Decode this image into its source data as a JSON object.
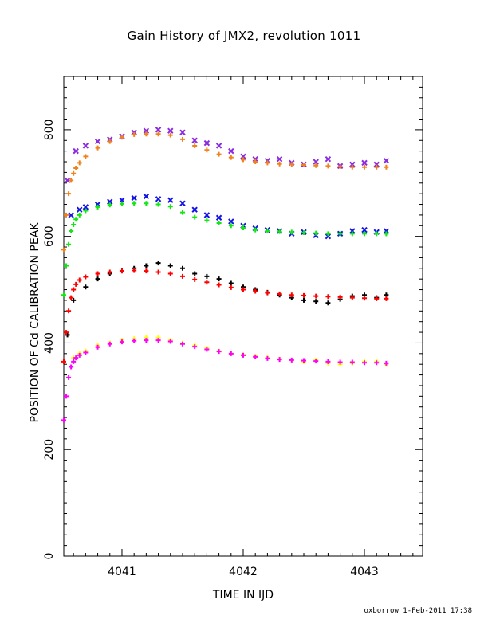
{
  "chart_data": {
    "type": "scatter",
    "title": "Gain History of JMX2, revolution 1011",
    "xlabel": "TIME IN IJD",
    "ylabel": "POSITION OF Cd CALIBRATION PEAK",
    "xlim": [
      4040.52,
      4043.48
    ],
    "ylim": [
      0,
      900
    ],
    "xticks": [
      4041,
      4042,
      4043
    ],
    "xtick_labels": [
      "4041",
      "4042",
      "4043"
    ],
    "yticks": [
      0,
      200,
      400,
      600,
      800
    ],
    "ytick_labels": [
      "0",
      "200",
      "400",
      "600",
      "800"
    ],
    "grid": false,
    "legend": "none",
    "series": [
      {
        "color": "#8b2be2",
        "marker": "x",
        "x": [
          4040.55,
          4040.62,
          4040.7,
          4040.8,
          4040.9,
          4041.0,
          4041.1,
          4041.2,
          4041.3,
          4041.4,
          4041.5,
          4041.6,
          4041.7,
          4041.8,
          4041.9,
          4042.0,
          4042.1,
          4042.2,
          4042.3,
          4042.4,
          4042.5,
          4042.6,
          4042.7,
          4042.8,
          4042.9,
          4043.0,
          4043.1,
          4043.18
        ],
        "y": [
          705,
          760,
          770,
          778,
          782,
          788,
          795,
          798,
          800,
          798,
          795,
          780,
          775,
          770,
          760,
          750,
          745,
          742,
          745,
          738,
          735,
          740,
          745,
          732,
          735,
          738,
          735,
          742
        ]
      },
      {
        "color": "#f0821e",
        "marker": "+",
        "x": [
          4040.52,
          4040.54,
          4040.56,
          4040.58,
          4040.6,
          4040.62,
          4040.65,
          4040.7,
          4040.8,
          4040.9,
          4041.0,
          4041.1,
          4041.2,
          4041.3,
          4041.4,
          4041.5,
          4041.6,
          4041.7,
          4041.8,
          4041.9,
          4042.0,
          4042.1,
          4042.2,
          4042.3,
          4042.4,
          4042.5,
          4042.6,
          4042.7,
          4042.8,
          4042.9,
          4043.0,
          4043.1,
          4043.18
        ],
        "y": [
          575,
          640,
          680,
          705,
          718,
          728,
          738,
          750,
          766,
          778,
          786,
          791,
          792,
          792,
          790,
          782,
          770,
          762,
          754,
          748,
          744,
          740,
          738,
          736,
          735,
          734,
          733,
          732,
          731,
          730,
          730,
          730,
          730
        ]
      },
      {
        "color": "#1414e6",
        "marker": "x",
        "x": [
          4040.58,
          4040.65,
          4040.7,
          4040.8,
          4040.9,
          4041.0,
          4041.1,
          4041.2,
          4041.3,
          4041.4,
          4041.5,
          4041.6,
          4041.7,
          4041.8,
          4041.9,
          4042.0,
          4042.1,
          4042.2,
          4042.3,
          4042.4,
          4042.5,
          4042.6,
          4042.7,
          4042.8,
          4042.9,
          4043.0,
          4043.1,
          4043.18
        ],
        "y": [
          640,
          650,
          655,
          660,
          665,
          668,
          672,
          675,
          670,
          668,
          662,
          650,
          640,
          635,
          628,
          620,
          615,
          612,
          610,
          605,
          608,
          602,
          600,
          605,
          610,
          612,
          608,
          610
        ]
      },
      {
        "color": "#14e614",
        "marker": "+",
        "x": [
          4040.52,
          4040.54,
          4040.56,
          4040.58,
          4040.6,
          4040.62,
          4040.65,
          4040.7,
          4040.8,
          4040.9,
          4041.0,
          4041.1,
          4041.2,
          4041.3,
          4041.4,
          4041.5,
          4041.6,
          4041.7,
          4041.8,
          4041.9,
          4042.0,
          4042.1,
          4042.2,
          4042.3,
          4042.4,
          4042.5,
          4042.6,
          4042.7,
          4042.8,
          4042.9,
          4043.0,
          4043.1,
          4043.18
        ],
        "y": [
          490,
          545,
          585,
          610,
          622,
          632,
          640,
          648,
          655,
          659,
          661,
          662,
          662,
          660,
          656,
          645,
          636,
          630,
          625,
          620,
          616,
          612,
          610,
          609,
          608,
          607,
          606,
          605,
          605,
          605,
          605,
          605,
          605
        ]
      },
      {
        "color": "#000000",
        "marker": "+",
        "x": [
          4040.55,
          4040.6,
          4040.7,
          4040.8,
          4040.9,
          4041.0,
          4041.1,
          4041.2,
          4041.3,
          4041.4,
          4041.5,
          4041.6,
          4041.7,
          4041.8,
          4041.9,
          4042.0,
          4042.1,
          4042.2,
          4042.3,
          4042.4,
          4042.5,
          4042.6,
          4042.7,
          4042.8,
          4042.9,
          4043.0,
          4043.1,
          4043.18
        ],
        "y": [
          415,
          480,
          505,
          520,
          530,
          535,
          540,
          545,
          550,
          545,
          540,
          530,
          525,
          520,
          512,
          505,
          500,
          495,
          490,
          485,
          480,
          478,
          475,
          482,
          488,
          490,
          485,
          490
        ]
      },
      {
        "color": "#ff0000",
        "marker": "+",
        "x": [
          4040.52,
          4040.54,
          4040.56,
          4040.58,
          4040.6,
          4040.62,
          4040.65,
          4040.7,
          4040.8,
          4040.9,
          4041.0,
          4041.1,
          4041.2,
          4041.3,
          4041.4,
          4041.5,
          4041.6,
          4041.7,
          4041.8,
          4041.9,
          4042.0,
          4042.1,
          4042.2,
          4042.3,
          4042.4,
          4042.5,
          4042.6,
          4042.7,
          4042.8,
          4042.9,
          4043.0,
          4043.1,
          4043.18
        ],
        "y": [
          365,
          420,
          460,
          485,
          500,
          510,
          518,
          524,
          530,
          533,
          535,
          536,
          535,
          533,
          530,
          525,
          519,
          514,
          509,
          504,
          500,
          497,
          494,
          492,
          490,
          489,
          488,
          487,
          486,
          485,
          484,
          483,
          483
        ]
      },
      {
        "color": "#ffff00",
        "marker": "+",
        "x": [
          4040.6,
          4040.65,
          4040.7,
          4040.8,
          4040.9,
          4041.0,
          4041.1,
          4041.2,
          4041.3,
          4041.4,
          4041.5,
          4041.6,
          4041.7,
          4041.8,
          4041.9,
          4042.0,
          4042.1,
          4042.2,
          4042.3,
          4042.4,
          4042.5,
          4042.6,
          4042.7,
          4042.8,
          4042.9,
          4043.0,
          4043.1,
          4043.18
        ],
        "y": [
          372,
          380,
          385,
          395,
          400,
          405,
          408,
          410,
          410,
          405,
          400,
          395,
          390,
          385,
          380,
          378,
          375,
          372,
          370,
          368,
          365,
          368,
          362,
          360,
          362,
          365,
          365,
          360
        ]
      },
      {
        "color": "#ff00ff",
        "marker": "+",
        "x": [
          4040.52,
          4040.54,
          4040.56,
          4040.58,
          4040.6,
          4040.62,
          4040.65,
          4040.7,
          4040.8,
          4040.9,
          4041.0,
          4041.1,
          4041.2,
          4041.3,
          4041.4,
          4041.5,
          4041.6,
          4041.7,
          4041.8,
          4041.9,
          4042.0,
          4042.1,
          4042.2,
          4042.3,
          4042.4,
          4042.5,
          4042.6,
          4042.7,
          4042.8,
          4042.9,
          4043.0,
          4043.1,
          4043.18
        ],
        "y": [
          255,
          300,
          335,
          355,
          365,
          372,
          377,
          382,
          392,
          398,
          402,
          404,
          405,
          405,
          403,
          398,
          393,
          388,
          384,
          380,
          377,
          374,
          371,
          369,
          368,
          367,
          366,
          365,
          364,
          364,
          363,
          363,
          362
        ]
      }
    ]
  },
  "footer": {
    "credit": "oxborrow  1-Feb-2011 17:38"
  }
}
